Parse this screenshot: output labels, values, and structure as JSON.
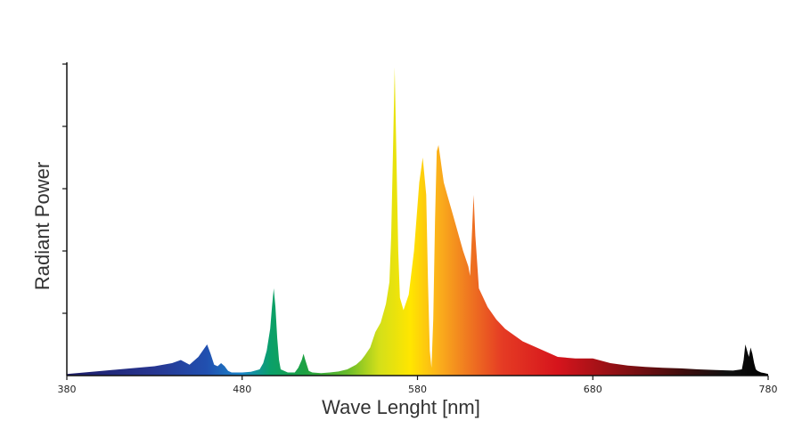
{
  "chart_data": {
    "type": "area",
    "title": "",
    "xlabel": "Wave Lenght [nm]",
    "ylabel": "Radiant Power",
    "xlim": [
      380,
      780
    ],
    "ylim": [
      0,
      100
    ],
    "x_ticks": [
      "380",
      "480",
      "580",
      "680",
      "780"
    ],
    "y_tick_count": 5,
    "grid": false,
    "legend": "none",
    "fill": "visible-spectrum gradient (violet → blue → green → yellow → orange → red → black)",
    "x": [
      380,
      390,
      400,
      410,
      420,
      430,
      440,
      445,
      450,
      455,
      460,
      462,
      464,
      466,
      468,
      470,
      472,
      474,
      480,
      485,
      490,
      492,
      494,
      496,
      497,
      498,
      499,
      500,
      501,
      502,
      504,
      506,
      510,
      512,
      514,
      515,
      516,
      518,
      520,
      525,
      530,
      535,
      540,
      545,
      548,
      550,
      553,
      556,
      559,
      562,
      564,
      565,
      566,
      567,
      568,
      569,
      570,
      572,
      575,
      578,
      581,
      583,
      585,
      586,
      587,
      588,
      589,
      590,
      591,
      592,
      593,
      594,
      595,
      597,
      600,
      603,
      606,
      609,
      610,
      611,
      612,
      613,
      615,
      620,
      625,
      630,
      640,
      650,
      660,
      670,
      680,
      690,
      700,
      710,
      720,
      730,
      740,
      750,
      760,
      765,
      766,
      767,
      768,
      769,
      770,
      771,
      772,
      773,
      774,
      776,
      778,
      780
    ],
    "y": [
      0.5,
      1,
      1.5,
      2,
      2.5,
      3,
      4,
      5,
      3.5,
      6,
      10,
      7,
      3.5,
      3,
      4,
      3,
      1.5,
      1,
      1,
      1.2,
      2,
      4,
      8,
      15,
      22,
      28,
      22,
      12,
      5,
      2,
      1.5,
      1,
      1,
      2.5,
      5,
      7,
      5,
      1.5,
      1,
      0.8,
      1,
      1.3,
      2,
      3.5,
      5,
      6.5,
      9,
      14,
      17,
      23,
      30,
      45,
      72,
      99,
      70,
      40,
      25,
      21,
      26,
      40,
      62,
      70,
      58,
      30,
      8,
      2.5,
      18,
      50,
      72,
      74,
      70,
      66,
      62,
      58,
      52,
      46,
      40,
      35,
      32,
      45,
      58,
      45,
      28,
      22,
      18,
      15,
      11,
      8.5,
      6,
      5.5,
      5.5,
      4,
      3.2,
      2.8,
      2.5,
      2.3,
      2,
      1.8,
      1.6,
      2,
      5,
      10,
      8,
      6,
      9,
      7,
      4,
      2,
      1.5,
      1,
      0.8,
      0.5
    ]
  }
}
